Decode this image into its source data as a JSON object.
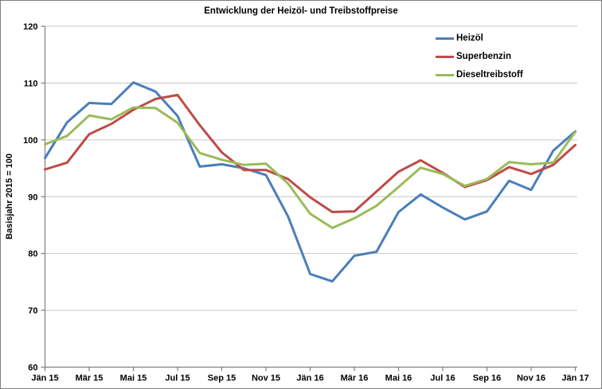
{
  "chart_data": {
    "type": "line",
    "title": "Entwicklung der Heizöl- und Treibstoffpreise",
    "ylabel": "Basisjahr 2015 = 100",
    "xlabel": "",
    "ylim": [
      60,
      120
    ],
    "y_tick_labels": [
      "60",
      "70",
      "80",
      "90",
      "100",
      "110",
      "120"
    ],
    "x_tick_label_every": 2,
    "grid": true,
    "legend_position": "top-right",
    "categories": [
      "Jän 15",
      "Feb 15",
      "Mär 15",
      "Apr 15",
      "Mai 15",
      "Jun 15",
      "Jul 15",
      "Aug 15",
      "Sep 15",
      "Okt 15",
      "Nov 15",
      "Dez 15",
      "Jän 16",
      "Feb 16",
      "Mär 16",
      "Apr 16",
      "Mai 16",
      "Jun 16",
      "Jul 16",
      "Aug 16",
      "Sep 16",
      "Okt 16",
      "Nov 16",
      "Dez 16",
      "Jän 17"
    ],
    "visible_x_tick_labels": [
      "Jän 15",
      "Mär 15",
      "Mai 15",
      "Jul 15",
      "Sep 15",
      "Nov 15",
      "Jän 16",
      "Mär 16",
      "Mai 16",
      "Jul 16",
      "Sep 16",
      "Nov 16",
      "Jän 17"
    ],
    "series": [
      {
        "id": "heizoel",
        "name": "Heizöl",
        "color": "#4a7ebb",
        "values": [
          96.8,
          103.1,
          106.5,
          106.3,
          110.1,
          108.5,
          104.2,
          95.3,
          95.7,
          95.0,
          93.8,
          86.5,
          76.4,
          75.1,
          79.6,
          80.3,
          87.3,
          90.4,
          88.1,
          86.0,
          87.4,
          92.8,
          91.2,
          98.1,
          101.5
        ]
      },
      {
        "id": "superbenzin",
        "name": "Superbenzin",
        "color": "#be4b48",
        "values": [
          94.8,
          96.0,
          101.0,
          102.8,
          105.3,
          107.2,
          107.9,
          102.6,
          97.8,
          94.7,
          94.7,
          93.1,
          89.9,
          87.3,
          87.4,
          90.9,
          94.4,
          96.4,
          94.2,
          91.7,
          92.9,
          95.2,
          94.0,
          95.6,
          99.1
        ]
      },
      {
        "id": "dieseltreibstoff",
        "name": "Dieseltreibstoff",
        "color": "#9bbb59",
        "values": [
          99.2,
          100.7,
          104.3,
          103.6,
          105.7,
          105.6,
          103.0,
          97.7,
          96.5,
          95.6,
          95.8,
          92.3,
          87.0,
          84.5,
          86.2,
          88.4,
          91.7,
          95.1,
          94.0,
          91.9,
          93.1,
          96.1,
          95.7,
          96.0,
          101.4
        ]
      }
    ],
    "axis_color": "#808080",
    "gridline_color": "#c6c6c6"
  }
}
